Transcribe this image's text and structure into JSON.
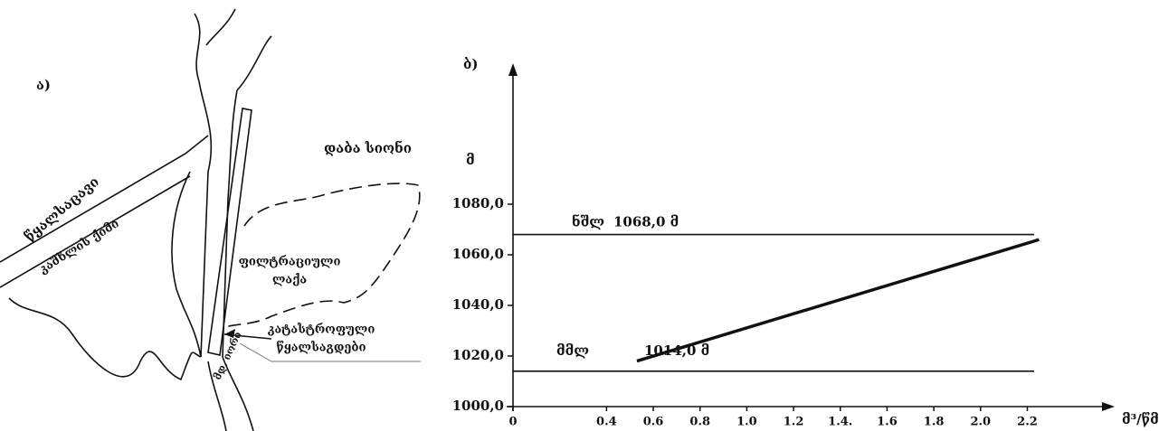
{
  "map": {
    "panel_label": "ა)",
    "reservoir": "წყალსაცავი",
    "dam_crest": "კაშხლის ქიმი",
    "town": "დაბა სიონი",
    "seepage": [
      "ფილტრაციული",
      "ლაქა"
    ],
    "spillway": [
      "კატასტროფული",
      "წყალსაგდები"
    ],
    "river": "მდ. იორი"
  },
  "chart_data": {
    "type": "line",
    "panel_label": "ბ)",
    "ylabel": "მ",
    "xlabel": "მ³/წმ",
    "xlim": [
      0,
      2.5
    ],
    "ylim": [
      1000,
      1130
    ],
    "xticks": [
      0,
      0.4,
      0.6,
      0.8,
      {
        "value": 1,
        "label": "1.0"
      },
      1.2,
      {
        "value": 1.4,
        "label": "1.4."
      },
      1.6,
      1.8,
      {
        "value": 2,
        "label": "2.0"
      },
      2.2
    ],
    "yticks": [
      {
        "value": 1000,
        "label": "1000,0"
      },
      {
        "value": 1020,
        "label": "1020,0"
      },
      {
        "value": 1040,
        "label": "1040,0"
      },
      {
        "value": 1060,
        "label": "1060,0"
      },
      {
        "value": 1080,
        "label": "1080,0"
      }
    ],
    "levels": [
      {
        "name": "ნშლ",
        "label": "1068,0 მ",
        "value": 1068
      },
      {
        "name": "მმლ",
        "label": "1014,0 მ",
        "value": 1014
      }
    ],
    "x": [
      0.53,
      2.25
    ],
    "values": [
      1018,
      1066
    ],
    "color": "#111111"
  }
}
